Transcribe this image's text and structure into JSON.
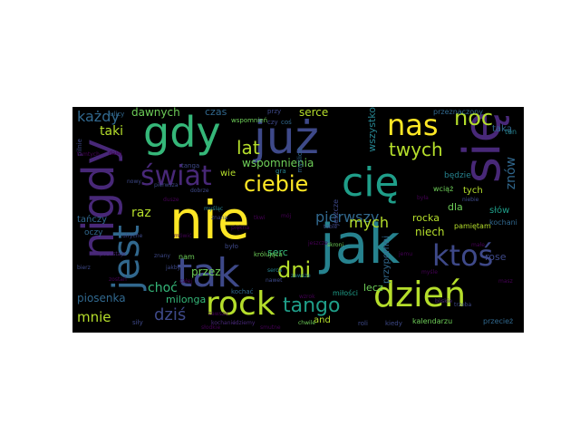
{
  "palette": {
    "yellow": "#fde725",
    "lime": "#b5de2b",
    "green": "#6ece58",
    "teal_green": "#35b779",
    "teal": "#1f9e89",
    "cyan_blue": "#26828e",
    "blue": "#31688e",
    "indigo": "#3e4989",
    "purple": "#482878",
    "dark_purple": "#440154",
    "background": "#000000"
  },
  "words": [
    {
      "id": "nie",
      "text": "nie",
      "color": "#fde725"
    },
    {
      "id": "jak",
      "text": "jak",
      "color": "#26828e"
    },
    {
      "id": "tak",
      "text": "tak",
      "color": "#3e4989"
    },
    {
      "id": "gdy",
      "text": "gdy",
      "color": "#35b779"
    },
    {
      "id": "juz",
      "text": "już",
      "color": "#3e4989"
    },
    {
      "id": "sie",
      "text": "się",
      "color": "#482878"
    },
    {
      "id": "nigdy",
      "text": "nigdy",
      "color": "#482878"
    },
    {
      "id": "cie",
      "text": "cię",
      "color": "#1f9e89"
    },
    {
      "id": "dzien",
      "text": "dzień",
      "color": "#b5de2b"
    },
    {
      "id": "jest",
      "text": "jest",
      "color": "#31688e"
    },
    {
      "id": "rock",
      "text": "rock",
      "color": "#b5de2b"
    },
    {
      "id": "swiat",
      "text": "świat",
      "color": "#482878"
    },
    {
      "id": "nas",
      "text": "nas",
      "color": "#fde725"
    },
    {
      "id": "noc",
      "text": "noc",
      "color": "#b5de2b"
    },
    {
      "id": "ktos",
      "text": "ktoś",
      "color": "#3e4989"
    },
    {
      "id": "ciebie",
      "text": "ciebie",
      "color": "#fde725"
    },
    {
      "id": "dni",
      "text": "dni",
      "color": "#b5de2b"
    },
    {
      "id": "tango",
      "text": "tango",
      "color": "#1f9e89"
    },
    {
      "id": "twych",
      "text": "twych",
      "color": "#b5de2b"
    },
    {
      "id": "lat",
      "text": "lat",
      "color": "#b5de2b"
    },
    {
      "id": "kazdy",
      "text": "każdy",
      "color": "#31688e"
    },
    {
      "id": "pierwszy",
      "text": "pierwszy",
      "color": "#31688e"
    },
    {
      "id": "dzis",
      "text": "dziś",
      "color": "#3e4989"
    },
    {
      "id": "mnie",
      "text": "mnie",
      "color": "#b5de2b"
    },
    {
      "id": "raz",
      "text": "raz",
      "color": "#b5de2b"
    },
    {
      "id": "mych",
      "text": "mych",
      "color": "#b5de2b"
    },
    {
      "id": "dawnych",
      "text": "dawnych",
      "color": "#6ece58"
    },
    {
      "id": "taki",
      "text": "taki",
      "color": "#b5de2b"
    },
    {
      "id": "wspomnienia",
      "text": "wspomnienia",
      "color": "#6ece58"
    },
    {
      "id": "serce",
      "text": "serce",
      "color": "#b5de2b"
    },
    {
      "id": "czas",
      "text": "czas",
      "color": "#31688e"
    },
    {
      "id": "wszystko",
      "text": "wszystko",
      "color": "#26828e"
    },
    {
      "id": "znow",
      "text": "znów",
      "color": "#31688e"
    },
    {
      "id": "rocka",
      "text": "rocka",
      "color": "#b5de2b"
    },
    {
      "id": "niech",
      "text": "niech",
      "color": "#b5de2b"
    },
    {
      "id": "przez",
      "text": "przez",
      "color": "#6ece58"
    },
    {
      "id": "chocc",
      "text": "choć",
      "color": "#35b779"
    },
    {
      "id": "piosenka",
      "text": "piosenka",
      "color": "#31688e"
    },
    {
      "id": "milonga",
      "text": "milonga",
      "color": "#35b779"
    },
    {
      "id": "przypomni",
      "text": "przypomni",
      "color": "#31688e"
    },
    {
      "id": "lecz",
      "text": "lecz",
      "color": "#6ece58"
    },
    {
      "id": "milosci",
      "text": "miłości",
      "color": "#1f9e89"
    },
    {
      "id": "and",
      "text": "and",
      "color": "#b5de2b"
    },
    {
      "id": "kalendarzu",
      "text": "kalendarzu",
      "color": "#6ece58"
    },
    {
      "id": "slow",
      "text": "słów",
      "color": "#1f9e89"
    },
    {
      "id": "jeszcze",
      "text": "jeszcze",
      "color": "#3e4989"
    },
    {
      "id": "dla",
      "text": "dla",
      "color": "#6ece58"
    },
    {
      "id": "tych",
      "text": "tych",
      "color": "#b5de2b"
    },
    {
      "id": "wie",
      "text": "wie",
      "color": "#b5de2b"
    },
    {
      "id": "nam",
      "text": "nam",
      "color": "#6ece58"
    },
    {
      "id": "serc",
      "text": "serc",
      "color": "#35b779"
    },
    {
      "id": "oczy",
      "text": "oczy",
      "color": "#31688e"
    },
    {
      "id": "tanczy",
      "text": "tańczy",
      "color": "#31688e"
    },
    {
      "id": "bedzie",
      "text": "będzie",
      "color": "#26828e"
    },
    {
      "id": "pamietam",
      "text": "pamiętam",
      "color": "#b5de2b"
    },
    {
      "id": "kochani",
      "text": "kochani",
      "color": "#31688e"
    },
    {
      "id": "rose",
      "text": "rose",
      "color": "#3e4989"
    },
    {
      "id": "wciaz",
      "text": "wciąż",
      "color": "#6ece58"
    },
    {
      "id": "taka",
      "text": "taką",
      "color": "#31688e"
    },
    {
      "id": "ten",
      "text": "ten",
      "color": "#26828e"
    },
    {
      "id": "przeznaczony",
      "text": "przeznaczony",
      "color": "#31688e"
    },
    {
      "id": "przeciez",
      "text": "przecież",
      "color": "#31688e"
    },
    {
      "id": "krolujac",
      "text": "królująca",
      "color": "#6ece58"
    },
    {
      "id": "kochac",
      "text": "kochać",
      "color": "#31688e"
    },
    {
      "id": "bylo",
      "text": "było",
      "color": "#3e4989"
    },
    {
      "id": "czy",
      "text": "czy",
      "color": "#3e4989"
    },
    {
      "id": "gra",
      "text": "gra",
      "color": "#26828e"
    },
    {
      "id": "chwile",
      "text": "chwile",
      "color": "#6ece58"
    },
    {
      "id": "tobie",
      "text": "tobie",
      "color": "#3e4989"
    },
    {
      "id": "niebie",
      "text": "niebie",
      "color": "#3e4989"
    },
    {
      "id": "myslac",
      "text": "myśląc",
      "color": "#26828e"
    },
    {
      "id": "znana",
      "text": "znana",
      "color": "#3e4989"
    },
    {
      "id": "tanga",
      "text": "tanga",
      "color": "#3e4989"
    },
    {
      "id": "skroni",
      "text": "skroni",
      "color": "#6ece58"
    },
    {
      "id": "zawsze",
      "text": "zawsze",
      "color": "#26828e"
    },
    {
      "id": "nawet",
      "text": "nawet",
      "color": "#3e4989"
    },
    {
      "id": "slodkie",
      "text": "słodkie",
      "color": "#440154"
    },
    {
      "id": "kochanie",
      "text": "kochanie",
      "color": "#482878"
    },
    {
      "id": "piekna",
      "text": "piękna",
      "color": "#440154"
    },
    {
      "id": "sily",
      "text": "siły",
      "color": "#3e4989"
    },
    {
      "id": "pierwsza",
      "text": "pierwsza",
      "color": "#3e4989"
    },
    {
      "id": "dusze",
      "text": "dusze",
      "color": "#440154"
    },
    {
      "id": "calej",
      "text": "całej",
      "color": "#440154"
    },
    {
      "id": "smutne",
      "text": "smutne",
      "color": "#440154"
    },
    {
      "id": "roli",
      "text": "roli",
      "color": "#3e4989"
    },
    {
      "id": "kiedy",
      "text": "kiedy",
      "color": "#3e4989"
    },
    {
      "id": "trzeba",
      "text": "trzeba",
      "color": "#3e4989"
    },
    {
      "id": "zawsze2",
      "text": "zawsze",
      "color": "#440154"
    },
    {
      "id": "wspomnien",
      "text": "wspomnień",
      "color": "#6ece58"
    },
    {
      "id": "przy",
      "text": "przy",
      "color": "#3e4989"
    },
    {
      "id": "cos",
      "text": "coś",
      "color": "#31688e"
    },
    {
      "id": "idziemy",
      "text": "idziemy",
      "color": "#482878"
    },
    {
      "id": "myslicie",
      "text": "myślicie",
      "color": "#31688e"
    },
    {
      "id": "jeszcze2",
      "text": "jeszcze",
      "color": "#440154"
    },
    {
      "id": "pilnie",
      "text": "pilnie",
      "color": "#3e4989"
    },
    {
      "id": "dalej",
      "text": "dalej",
      "color": "#440154"
    },
    {
      "id": "nowy",
      "text": "nowy",
      "color": "#3e4989"
    },
    {
      "id": "ulicy",
      "text": "ulicy",
      "color": "#31688e"
    },
    {
      "id": "znany",
      "text": "znany",
      "color": "#3e4989"
    },
    {
      "id": "mowic",
      "text": "mówić",
      "color": "#440154"
    },
    {
      "id": "jakby",
      "text": "jakby",
      "color": "#3e4989"
    },
    {
      "id": "zostan",
      "text": "zostań",
      "color": "#440154"
    },
    {
      "id": "pozostaje",
      "text": "pozostaje",
      "color": "#482878"
    },
    {
      "id": "ulryche",
      "text": "ulryche",
      "color": "#3e4989"
    },
    {
      "id": "bliskie",
      "text": "bliskie",
      "color": "#482878"
    },
    {
      "id": "dobrze",
      "text": "dobrze",
      "color": "#3e4989"
    },
    {
      "id": "serca",
      "text": "serca",
      "color": "#26828e"
    },
    {
      "id": "tamtych",
      "text": "tamtych",
      "color": "#440154"
    },
    {
      "id": "wzrok",
      "text": "wzrok",
      "color": "#440154"
    },
    {
      "id": "bierz",
      "text": "bierz",
      "color": "#3e4989"
    },
    {
      "id": "byla",
      "text": "była",
      "color": "#440154"
    },
    {
      "id": "mysle",
      "text": "myśle",
      "color": "#440154"
    },
    {
      "id": "male",
      "text": "małe",
      "color": "#440154"
    },
    {
      "id": "masz",
      "text": "masz",
      "color": "#440154"
    },
    {
      "id": "tkwi",
      "text": "tkwi",
      "color": "#440154"
    },
    {
      "id": "jemu",
      "text": "jemu",
      "color": "#440154"
    },
    {
      "id": "moj",
      "text": "mój",
      "color": "#440154"
    }
  ]
}
